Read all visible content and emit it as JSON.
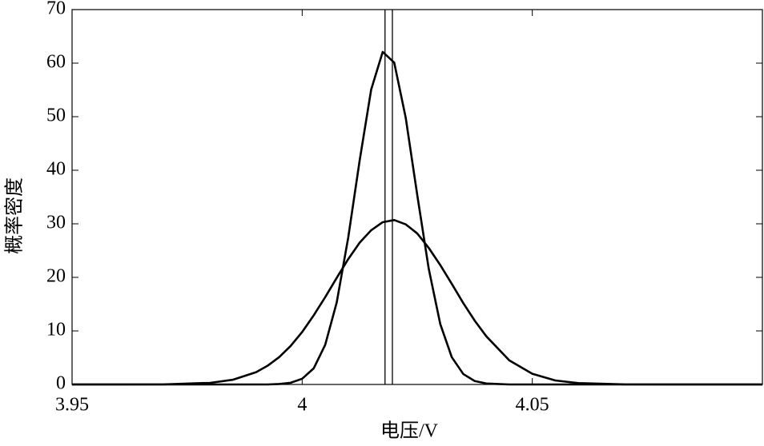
{
  "chart_data": {
    "type": "line",
    "x_label": "电压/V",
    "y_label": "概率密度",
    "x": [
      3.95,
      3.96,
      3.97,
      3.98,
      3.985,
      3.99,
      3.9925,
      3.995,
      3.9975,
      4.0,
      4.0025,
      4.005,
      4.0075,
      4.01,
      4.0125,
      4.015,
      4.0175,
      4.02,
      4.0225,
      4.025,
      4.0275,
      4.03,
      4.0325,
      4.035,
      4.0375,
      4.04,
      4.045,
      4.05,
      4.055,
      4.06,
      4.07,
      4.08,
      4.1
    ],
    "series": [
      {
        "color": "#000000",
        "values": [
          0,
          0,
          0,
          0,
          0,
          0,
          0,
          0.08,
          0.32,
          1.07,
          3.0,
          7.4,
          15.3,
          27.4,
          41.9,
          55.1,
          62.1,
          60.1,
          49.8,
          35.4,
          21.6,
          11.3,
          5.1,
          1.95,
          0.64,
          0.18,
          0,
          0,
          0,
          0,
          0,
          0,
          0
        ]
      },
      {
        "color": "#000000",
        "values": [
          0,
          0,
          0.02,
          0.3,
          0.89,
          2.3,
          3.5,
          5.1,
          7.2,
          9.8,
          12.9,
          16.3,
          19.9,
          23.4,
          26.5,
          28.8,
          30.3,
          30.7,
          29.9,
          28.2,
          25.5,
          22.3,
          18.8,
          15.2,
          11.9,
          9.0,
          4.5,
          2.0,
          0.75,
          0.25,
          0.02,
          0,
          0
        ]
      }
    ],
    "vlines": [
      4.018,
      4.0196
    ],
    "xlim": [
      3.95,
      4.1
    ],
    "xticks": [
      3.95,
      4,
      4.05
    ],
    "ylim": [
      0,
      70
    ],
    "yticks": [
      0,
      10,
      20,
      30,
      40,
      50,
      60,
      70
    ]
  }
}
